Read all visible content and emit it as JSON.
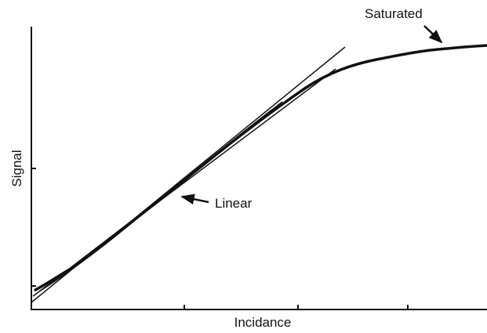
{
  "annotations": {
    "saturated": "Saturated",
    "linear": "Linear"
  },
  "axes": {
    "y_label": "Signal",
    "x_label": "Incidance"
  }
}
